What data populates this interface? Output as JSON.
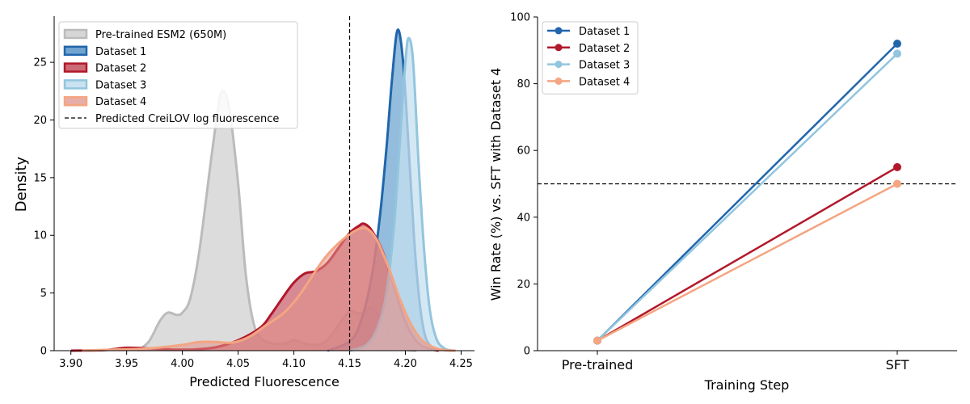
{
  "chart_data": [
    {
      "type": "area",
      "title": "",
      "xlabel": "Predicted Fluorescence",
      "ylabel": "Density",
      "xlim": [
        3.885,
        4.262
      ],
      "ylim": [
        0,
        29
      ],
      "xticks": [
        "3.90",
        "3.95",
        "4.00",
        "4.05",
        "4.10",
        "4.15",
        "4.20",
        "4.25"
      ],
      "xtick_values": [
        3.9,
        3.95,
        4.0,
        4.05,
        4.1,
        4.15,
        4.2,
        4.25
      ],
      "yticks": [
        "0",
        "5",
        "10",
        "15",
        "20",
        "25"
      ],
      "ytick_values": [
        0,
        5,
        10,
        15,
        20,
        25
      ],
      "grid": false,
      "legend": "top-left",
      "reference_line": {
        "label": "Predicted CreiLOV log fluorescence",
        "x": 4.15,
        "style": "dashed",
        "color": "#000000"
      },
      "series": [
        {
          "name": "Pre-trained ESM2 (650M)",
          "line": "#bbbbbb",
          "fill": "#d6d6d6",
          "fill_opacity": 0.85,
          "points": [
            [
              3.96,
              0
            ],
            [
              3.97,
              0.8
            ],
            [
              3.98,
              2.6
            ],
            [
              3.987,
              3.3
            ],
            [
              3.995,
              3.1
            ],
            [
              4.0,
              3.3
            ],
            [
              4.007,
              4.5
            ],
            [
              4.015,
              8.5
            ],
            [
              4.025,
              16
            ],
            [
              4.032,
              21
            ],
            [
              4.036,
              22.5
            ],
            [
              4.042,
              21
            ],
            [
              4.05,
              14.5
            ],
            [
              4.057,
              6.5
            ],
            [
              4.065,
              2
            ],
            [
              4.075,
              0.8
            ],
            [
              4.09,
              0.6
            ],
            [
              4.1,
              0.9
            ],
            [
              4.11,
              0.6
            ],
            [
              4.12,
              0.5
            ],
            [
              4.13,
              0.9
            ],
            [
              4.14,
              2.2
            ],
            [
              4.15,
              3.4
            ],
            [
              4.16,
              3.2
            ],
            [
              4.17,
              3.7
            ],
            [
              4.18,
              2.4
            ],
            [
              4.19,
              0.7
            ],
            [
              4.2,
              0.1
            ],
            [
              4.21,
              0
            ]
          ]
        },
        {
          "name": "Dataset 1",
          "line": "#2166ac",
          "fill": "#4d8fc4",
          "fill_opacity": 0.6,
          "points": [
            [
              4.13,
              0
            ],
            [
              4.15,
              0.8
            ],
            [
              4.16,
              2.5
            ],
            [
              4.17,
              6.5
            ],
            [
              4.177,
              11.5
            ],
            [
              4.183,
              17.5
            ],
            [
              4.188,
              23.5
            ],
            [
              4.193,
              27.8
            ],
            [
              4.198,
              25
            ],
            [
              4.203,
              17.5
            ],
            [
              4.208,
              9.5
            ],
            [
              4.213,
              4
            ],
            [
              4.218,
              1.2
            ],
            [
              4.225,
              0.2
            ],
            [
              4.23,
              0
            ]
          ]
        },
        {
          "name": "Dataset 2",
          "line": "#b2182b",
          "fill": "#c9636f",
          "fill_opacity": 0.75,
          "points": [
            [
              3.9,
              0
            ],
            [
              3.93,
              0.05
            ],
            [
              3.95,
              0.25
            ],
            [
              3.97,
              0.2
            ],
            [
              3.99,
              0.1
            ],
            [
              4.01,
              0.1
            ],
            [
              4.03,
              0.3
            ],
            [
              4.05,
              0.9
            ],
            [
              4.07,
              2
            ],
            [
              4.08,
              3.2
            ],
            [
              4.09,
              4.6
            ],
            [
              4.1,
              5.9
            ],
            [
              4.11,
              6.7
            ],
            [
              4.12,
              6.9
            ],
            [
              4.13,
              7.6
            ],
            [
              4.14,
              8.9
            ],
            [
              4.15,
              10.2
            ],
            [
              4.158,
              10.8
            ],
            [
              4.163,
              11
            ],
            [
              4.17,
              10.4
            ],
            [
              4.18,
              8.5
            ],
            [
              4.19,
              5.5
            ],
            [
              4.2,
              2.5
            ],
            [
              4.21,
              0.8
            ],
            [
              4.22,
              0.2
            ],
            [
              4.23,
              0
            ]
          ]
        },
        {
          "name": "Dataset 3",
          "line": "#92c5de",
          "fill": "#c6e0ef",
          "fill_opacity": 0.75,
          "points": [
            [
              4.15,
              0
            ],
            [
              4.165,
              0.5
            ],
            [
              4.175,
              2
            ],
            [
              4.183,
              5
            ],
            [
              4.19,
              11
            ],
            [
              4.195,
              18
            ],
            [
              4.2,
              25
            ],
            [
              4.203,
              27.1
            ],
            [
              4.207,
              25
            ],
            [
              4.212,
              16
            ],
            [
              4.217,
              8.5
            ],
            [
              4.222,
              3.5
            ],
            [
              4.228,
              1
            ],
            [
              4.235,
              0.2
            ],
            [
              4.242,
              0
            ]
          ]
        },
        {
          "name": "Dataset 4",
          "line": "#f4a582",
          "fill": "#e2918a",
          "fill_opacity": 0.55,
          "points": [
            [
              3.91,
              0
            ],
            [
              3.94,
              0.1
            ],
            [
              3.97,
              0.2
            ],
            [
              4.0,
              0.5
            ],
            [
              4.015,
              0.75
            ],
            [
              4.03,
              0.75
            ],
            [
              4.045,
              0.7
            ],
            [
              4.06,
              1.2
            ],
            [
              4.075,
              2.2
            ],
            [
              4.09,
              3.2
            ],
            [
              4.1,
              4.2
            ],
            [
              4.11,
              5.5
            ],
            [
              4.12,
              7
            ],
            [
              4.13,
              8.3
            ],
            [
              4.14,
              9.3
            ],
            [
              4.15,
              10.1
            ],
            [
              4.16,
              10.6
            ],
            [
              4.167,
              10.5
            ],
            [
              4.175,
              9.5
            ],
            [
              4.185,
              7.2
            ],
            [
              4.195,
              4.5
            ],
            [
              4.205,
              2.3
            ],
            [
              4.215,
              0.9
            ],
            [
              4.225,
              0.3
            ],
            [
              4.235,
              0.05
            ],
            [
              4.245,
              0
            ]
          ]
        }
      ]
    },
    {
      "type": "line",
      "title": "",
      "xlabel": "Training Step",
      "ylabel": "Win Rate (%) vs. SFT with Dataset 4",
      "categories": [
        "Pre-trained",
        "SFT"
      ],
      "ylim": [
        0,
        100
      ],
      "yticks": [
        "0",
        "20",
        "40",
        "60",
        "80",
        "100"
      ],
      "ytick_values": [
        0,
        20,
        40,
        60,
        80,
        100
      ],
      "grid": false,
      "legend": "top-left",
      "reference_line": {
        "y": 50,
        "style": "dashed",
        "color": "#000000"
      },
      "series": [
        {
          "name": "Dataset 1",
          "color": "#2166ac",
          "values": [
            3,
            92
          ]
        },
        {
          "name": "Dataset 2",
          "color": "#b2182b",
          "values": [
            3,
            55
          ]
        },
        {
          "name": "Dataset 3",
          "color": "#92c5de",
          "values": [
            3,
            89
          ]
        },
        {
          "name": "Dataset 4",
          "color": "#f4a582",
          "values": [
            3,
            50
          ]
        }
      ]
    }
  ]
}
